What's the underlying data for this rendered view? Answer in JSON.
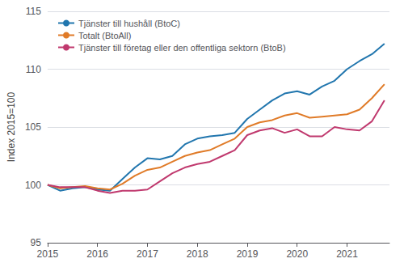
{
  "chart_data": {
    "type": "line",
    "ylabel": "Index 2015=100",
    "x": [
      2015.0,
      2015.25,
      2015.5,
      2015.75,
      2016.0,
      2016.25,
      2016.5,
      2016.75,
      2017.0,
      2017.25,
      2017.5,
      2017.75,
      2018.0,
      2018.25,
      2018.5,
      2018.75,
      2019.0,
      2019.25,
      2019.5,
      2019.75,
      2020.0,
      2020.25,
      2020.5,
      2020.75,
      2021.0,
      2021.25,
      2021.5,
      2021.75
    ],
    "series": [
      {
        "name": "Tjänster till hushåll (BtoC)",
        "color": "#2176ae",
        "values": [
          100.0,
          99.5,
          99.7,
          99.8,
          99.6,
          99.5,
          100.5,
          101.5,
          102.3,
          102.2,
          102.5,
          103.5,
          104.0,
          104.2,
          104.3,
          104.5,
          105.7,
          106.5,
          107.3,
          107.9,
          108.1,
          107.8,
          108.5,
          109.0,
          110.0,
          110.7,
          111.3,
          112.2
        ]
      },
      {
        "name": "Totalt (BtoAll)",
        "color": "#e07b28",
        "values": [
          100.0,
          99.7,
          99.8,
          99.9,
          99.7,
          99.6,
          100.1,
          100.8,
          101.3,
          101.5,
          102.0,
          102.5,
          102.8,
          103.0,
          103.5,
          104.0,
          105.0,
          105.4,
          105.6,
          106.0,
          106.2,
          105.8,
          105.9,
          106.0,
          106.1,
          106.5,
          107.5,
          108.7
        ]
      },
      {
        "name": "Tjänster till företag eller den offentliga sektorn (BtoB)",
        "color": "#c0396e",
        "values": [
          100.0,
          99.8,
          99.8,
          99.8,
          99.5,
          99.3,
          99.5,
          99.5,
          99.6,
          100.3,
          101.0,
          101.5,
          101.8,
          102.0,
          102.5,
          103.0,
          104.3,
          104.7,
          104.9,
          104.5,
          104.8,
          104.2,
          104.2,
          105.0,
          104.8,
          104.7,
          105.5,
          107.3
        ]
      }
    ],
    "xlim": [
      2015.0,
      2021.85
    ],
    "ylim": [
      95,
      115
    ],
    "xticks": [
      2015,
      2016,
      2017,
      2018,
      2019,
      2020,
      2021
    ],
    "yticks": [
      95,
      100,
      105,
      110,
      115
    ],
    "grid": true,
    "legend": "upper left"
  }
}
